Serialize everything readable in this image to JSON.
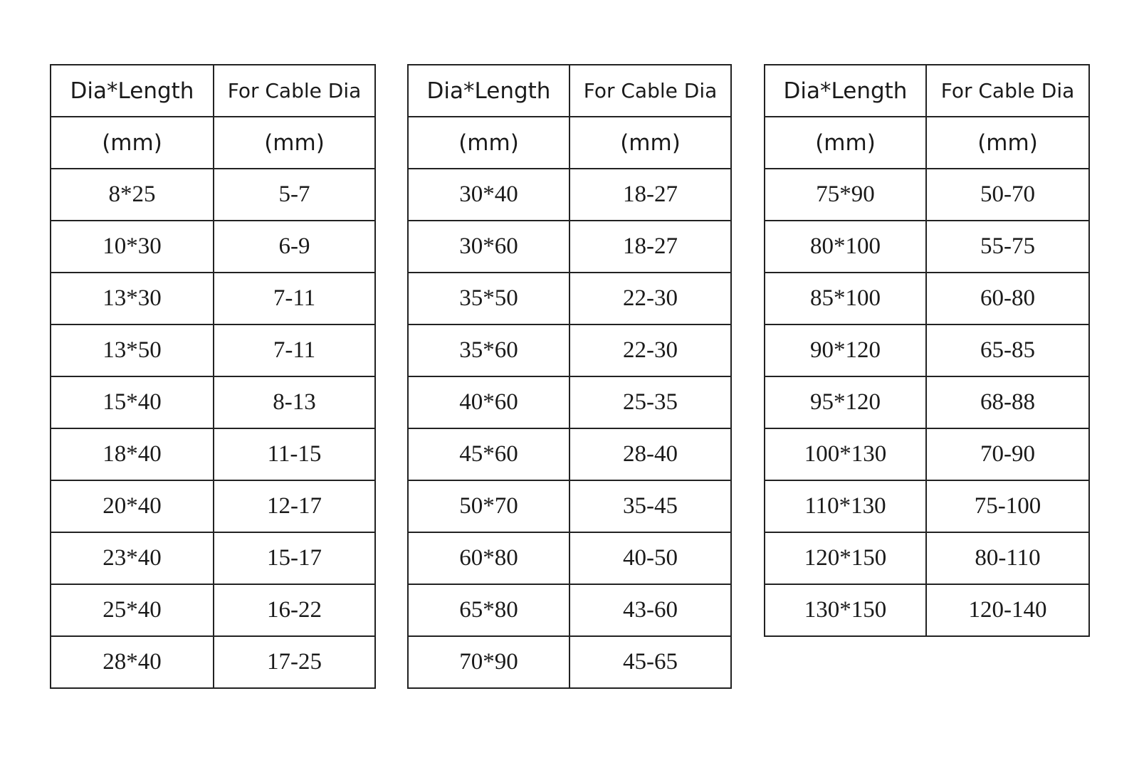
{
  "tables": [
    {
      "header": [
        [
          "Dia*Length",
          "For Cable Dia"
        ],
        [
          "(mm)",
          "(mm)"
        ]
      ],
      "rows": [
        [
          "8*25",
          "5-7"
        ],
        [
          "10*30",
          "6-9"
        ],
        [
          "13*30",
          "7-11"
        ],
        [
          "13*50",
          "7-11"
        ],
        [
          "15*40",
          "8-13"
        ],
        [
          "18*40",
          "11-15"
        ],
        [
          "20*40",
          "12-17"
        ],
        [
          "23*40",
          "15-17"
        ],
        [
          "25*40",
          "16-22"
        ],
        [
          "28*40",
          "17-25"
        ]
      ]
    },
    {
      "header": [
        [
          "Dia*Length",
          "For Cable Dia"
        ],
        [
          "(mm)",
          "(mm)"
        ]
      ],
      "rows": [
        [
          "30*40",
          "18-27"
        ],
        [
          "30*60",
          "18-27"
        ],
        [
          "35*50",
          "22-30"
        ],
        [
          "35*60",
          "22-30"
        ],
        [
          "40*60",
          "25-35"
        ],
        [
          "45*60",
          "28-40"
        ],
        [
          "50*70",
          "35-45"
        ],
        [
          "60*80",
          "40-50"
        ],
        [
          "65*80",
          "43-60"
        ],
        [
          "70*90",
          "45-65"
        ]
      ]
    },
    {
      "header": [
        [
          "Dia*Length",
          "For Cable Dia"
        ],
        [
          "(mm)",
          "(mm)"
        ]
      ],
      "rows": [
        [
          "75*90",
          "50-70"
        ],
        [
          "80*100",
          "55-75"
        ],
        [
          "85*100",
          "60-80"
        ],
        [
          "90*120",
          "65-85"
        ],
        [
          "95*120",
          "68-88"
        ],
        [
          "100*130",
          "70-90"
        ],
        [
          "110*130",
          "75-100"
        ],
        [
          "120*150",
          "80-110"
        ],
        [
          "130*150",
          "120-140"
        ]
      ]
    }
  ]
}
